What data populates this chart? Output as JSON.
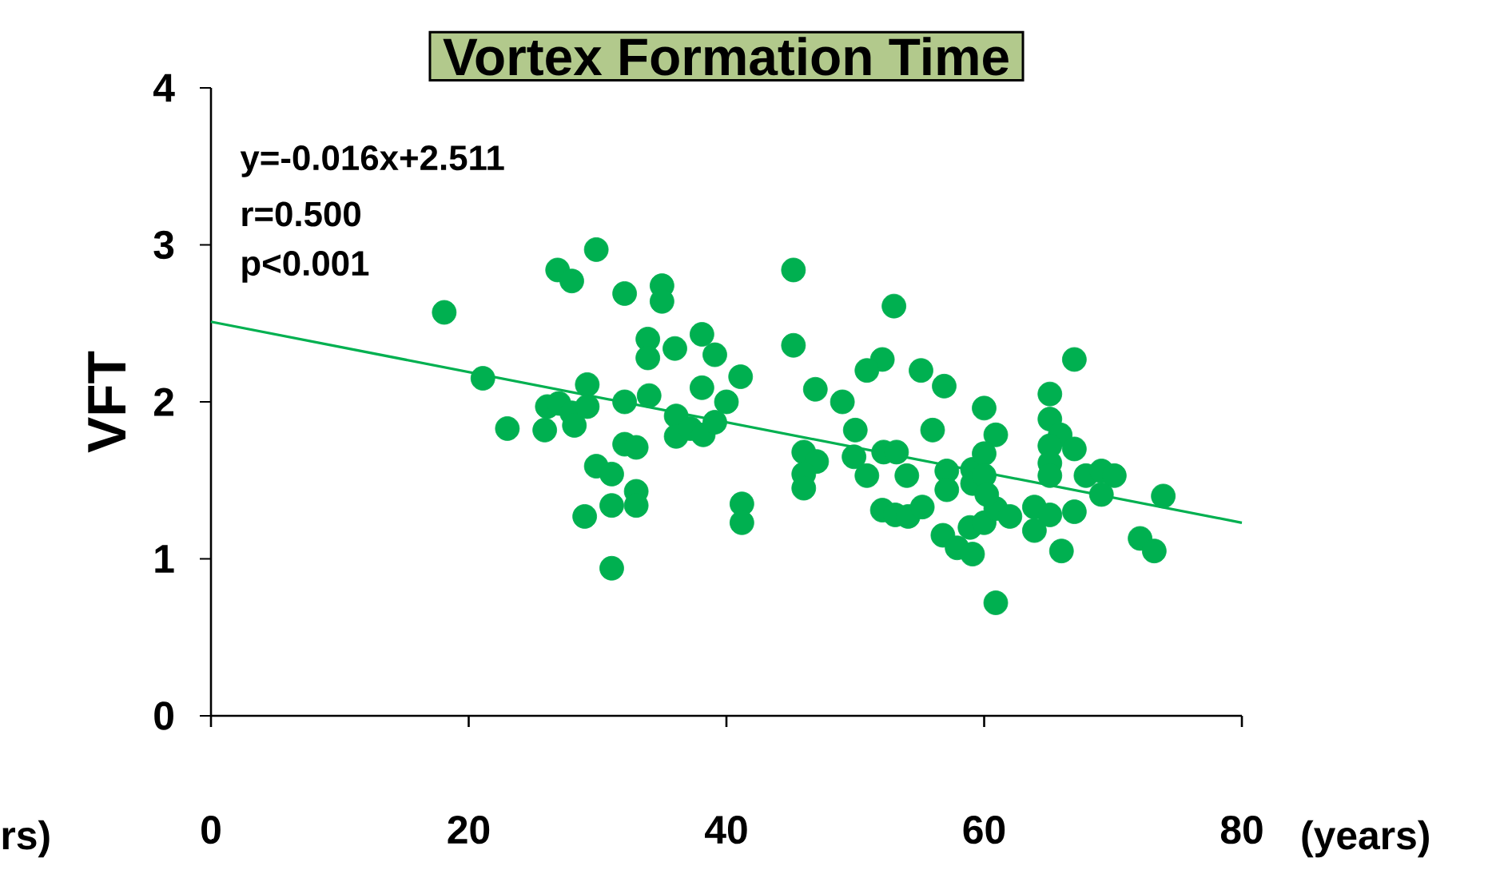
{
  "chart_data": {
    "type": "scatter",
    "title": "Vortex Formation Time",
    "ylabel": "VFT",
    "xlabel": "(years)",
    "annotations": [
      "y=-0.016x+2.511",
      "r=0.500",
      "p<0.001",
      "rs)"
    ],
    "xlim": [
      0,
      80
    ],
    "ylim": [
      0,
      4
    ],
    "xticks": [
      0,
      20,
      40,
      60,
      80
    ],
    "yticks": [
      0,
      1,
      2,
      3,
      4
    ],
    "series": [
      {
        "color": "#00b050",
        "marker": "circle",
        "x": [
          18.1,
          21.1,
          23.0,
          26.1,
          25.9,
          27.0,
          28.0,
          28.2,
          29.2,
          29.2,
          26.9,
          28.0,
          29.9,
          32.1,
          35.0,
          35.0,
          33.9,
          33.9,
          36.0,
          38.1,
          39.1,
          41.1,
          38.1,
          40.0,
          32.1,
          34.0,
          36.1,
          36.1,
          37.2,
          38.2,
          39.1,
          32.1,
          33.0,
          29.9,
          31.1,
          33.0,
          33.0,
          31.1,
          29.0,
          41.2,
          41.2,
          31.1,
          45.2,
          45.2,
          46.9,
          49.0,
          50.0,
          46.0,
          47.0,
          46.0,
          46.0,
          49.9,
          50.9,
          52.2,
          53.2,
          54.0,
          53.0,
          52.1,
          50.9,
          55.1,
          56.9,
          56.0,
          52.1,
          53.1,
          54.1,
          55.2,
          57.1,
          57.1,
          59.1,
          60.0,
          60.9,
          60.0,
          59.1,
          60.0,
          56.8,
          57.9,
          59.1,
          58.9,
          60.0,
          60.9,
          62.0,
          60.9,
          67.0,
          65.1,
          65.1,
          65.9,
          65.1,
          67.0,
          65.1,
          65.1,
          67.9,
          69.1,
          70.1,
          69.1,
          73.9,
          63.9,
          65.1,
          67.0,
          60.2,
          63.9,
          66.0,
          72.1,
          73.2
        ],
        "values": [
          2.57,
          2.15,
          1.83,
          1.97,
          1.82,
          1.99,
          1.93,
          1.85,
          2.11,
          1.97,
          2.84,
          2.77,
          2.97,
          2.69,
          2.74,
          2.64,
          2.4,
          2.28,
          2.34,
          2.43,
          2.3,
          2.16,
          2.09,
          2.0,
          2.0,
          2.04,
          1.91,
          1.78,
          1.83,
          1.79,
          1.87,
          1.73,
          1.71,
          1.59,
          1.54,
          1.43,
          1.34,
          1.34,
          1.27,
          1.35,
          1.23,
          0.94,
          2.84,
          2.36,
          2.08,
          2.0,
          1.82,
          1.68,
          1.62,
          1.54,
          1.45,
          1.65,
          1.53,
          1.68,
          1.68,
          1.53,
          2.61,
          2.27,
          2.2,
          2.2,
          2.1,
          1.82,
          1.31,
          1.28,
          1.27,
          1.33,
          1.56,
          1.44,
          1.57,
          1.96,
          1.79,
          1.67,
          1.48,
          1.53,
          1.15,
          1.07,
          1.03,
          1.2,
          1.23,
          1.32,
          1.27,
          0.72,
          2.27,
          2.05,
          1.89,
          1.79,
          1.72,
          1.7,
          1.61,
          1.53,
          1.53,
          1.56,
          1.53,
          1.41,
          1.4,
          1.33,
          1.28,
          1.3,
          1.41,
          1.18,
          1.05,
          1.13,
          1.05
        ]
      },
      {
        "type": "line",
        "color": "#00b050",
        "marker": "none",
        "x": [
          0,
          80
        ],
        "values": [
          2.51,
          1.23
        ]
      }
    ]
  }
}
